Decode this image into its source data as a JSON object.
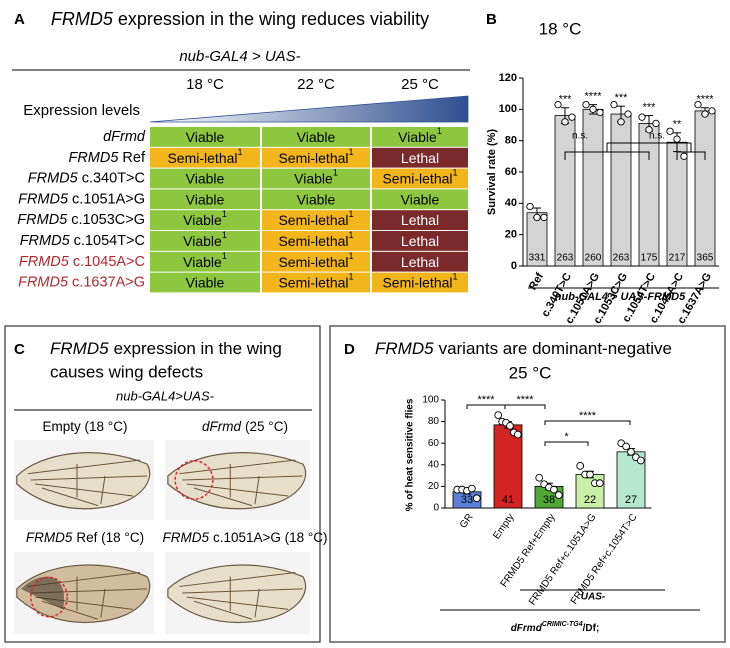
{
  "panel_a": {
    "label": "A",
    "title_gene": "FRMD5",
    "title_rest": "expression in the wing reduces viability",
    "genotype": "nub-GAL4 > UAS-",
    "temperatures": [
      "18 °C",
      "22 °C",
      "25 °C"
    ],
    "gradient_label": "Expression levels",
    "rows": [
      {
        "gene": "dFrmd",
        "color": "#000000",
        "cells": [
          {
            "text": "Viable",
            "color": "#8dc63f"
          },
          {
            "text": "Viable",
            "color": "#8dc63f"
          },
          {
            "text": "Viable",
            "note": "1",
            "color": "#8dc63f"
          }
        ]
      },
      {
        "gene": "FRMD5",
        "variant": "Ref",
        "color": "#000000",
        "cells": [
          {
            "text": "Semi-lethal",
            "note": "1",
            "color": "#f2b61c"
          },
          {
            "text": "Semi-lethal",
            "note": "1",
            "color": "#f2b61c"
          },
          {
            "text": "Lethal",
            "color": "#7a2a2a"
          }
        ]
      },
      {
        "gene": "FRMD5",
        "variant": "c.340T>C",
        "color": "#000000",
        "cells": [
          {
            "text": "Viable",
            "color": "#8dc63f"
          },
          {
            "text": "Viable",
            "note": "1",
            "color": "#8dc63f"
          },
          {
            "text": "Semi-lethal",
            "note": "1",
            "color": "#f2b61c"
          }
        ]
      },
      {
        "gene": "FRMD5",
        "variant": "c.1051A>G",
        "color": "#000000",
        "cells": [
          {
            "text": "Viable",
            "color": "#8dc63f"
          },
          {
            "text": "Viable",
            "color": "#8dc63f"
          },
          {
            "text": "Viable",
            "color": "#8dc63f"
          }
        ]
      },
      {
        "gene": "FRMD5",
        "variant": "c.1053C>G",
        "color": "#000000",
        "cells": [
          {
            "text": "Viable",
            "note": "1",
            "color": "#8dc63f"
          },
          {
            "text": "Semi-lethal",
            "note": "1",
            "color": "#f2b61c"
          },
          {
            "text": "Lethal",
            "color": "#7a2a2a"
          }
        ]
      },
      {
        "gene": "FRMD5",
        "variant": "c.1054T>C",
        "color": "#000000",
        "cells": [
          {
            "text": "Viable",
            "note": "1",
            "color": "#8dc63f"
          },
          {
            "text": "Semi-lethal",
            "note": "1",
            "color": "#f2b61c"
          },
          {
            "text": "Lethal",
            "color": "#7a2a2a"
          }
        ]
      },
      {
        "gene": "FRMD5",
        "variant": "c.1045A>C",
        "color": "#b3282d",
        "cells": [
          {
            "text": "Viable",
            "note": "1",
            "color": "#8dc63f"
          },
          {
            "text": "Semi-lethal",
            "note": "1",
            "color": "#f2b61c"
          },
          {
            "text": "Lethal",
            "color": "#7a2a2a"
          }
        ]
      },
      {
        "gene": "FRMD5",
        "variant": "c.1637A>G",
        "color": "#b3282d",
        "cells": [
          {
            "text": "Viable",
            "color": "#8dc63f"
          },
          {
            "text": "Semi-lethal",
            "note": "1",
            "color": "#f2b61c"
          },
          {
            "text": "Semi-lethal",
            "note": "1",
            "color": "#f2b61c"
          }
        ]
      }
    ]
  },
  "panel_c": {
    "label": "C",
    "title_gene": "FRMD5",
    "title_line1": "expression in the wing",
    "title_line2": "causes wing defects",
    "genotype": "nub-GAL4>UAS-",
    "images": [
      {
        "caption_rest": "Empty (18 °C)"
      },
      {
        "caption_italic": "dFrmd",
        "caption_rest": "(25 °C)"
      },
      {
        "caption_italic": "FRMD5",
        "caption_rest": "Ref (18 °C)"
      },
      {
        "caption_italic": "FRMD5",
        "caption_rest": "c.1051A>G (18 °C)"
      }
    ]
  },
  "chart_data": [
    {
      "type": "bar",
      "panel": "B",
      "title": "18 °C",
      "ylabel": "Survival rate (%)",
      "xlabel": "nub-GAL4 > UAS-FRMD5",
      "categories": [
        "Ref",
        "c.340T>C",
        "c.1051A>G",
        "c.1053C>G",
        "c.1054T>C",
        "c.1045A>C",
        "c.1637A>G"
      ],
      "values": [
        34,
        96,
        100,
        97,
        91,
        79,
        99
      ],
      "errors": [
        3,
        5,
        3,
        5,
        5,
        6,
        2
      ],
      "points": [
        [
          38,
          31,
          31
        ],
        [
          103,
          92,
          95
        ],
        [
          103,
          100,
          98
        ],
        [
          103,
          92,
          97
        ],
        [
          95,
          87,
          91
        ],
        [
          86,
          81,
          70
        ],
        [
          103,
          97,
          99
        ]
      ],
      "sample_sizes": [
        331,
        263,
        260,
        263,
        175,
        217,
        365
      ],
      "significance": [
        "***",
        "****",
        "***",
        "***",
        "**",
        "****"
      ],
      "comparisons": [
        "n.s.",
        "n.s."
      ],
      "color": "#d4d4d4",
      "ylim": [
        0,
        120
      ],
      "yticks": [
        0,
        20,
        40,
        60,
        80,
        100,
        120
      ]
    },
    {
      "type": "bar",
      "panel": "D",
      "title_gene": "FRMD5",
      "title": "variants are dominant-negative",
      "subtitle": "25 °C",
      "ylabel": "% of heat sensitive flies",
      "categories": [
        "GR",
        "Empty",
        "FRMD5 Ref+Empty",
        "FRMD5 Ref+c.1051A>G",
        "FRMD5 Ref+c.1054T>C"
      ],
      "colors": [
        "#5b7fd8",
        "#d42323",
        "#4fa834",
        "#c9f0a6",
        "#b6e8cf"
      ],
      "values": [
        15,
        77,
        20,
        31,
        52
      ],
      "errors": [
        2,
        3,
        3,
        3,
        3
      ],
      "points": [
        [
          17,
          17,
          16,
          18,
          9
        ],
        [
          86,
          80,
          79,
          76,
          70,
          68
        ],
        [
          28,
          22,
          19,
          17,
          12
        ],
        [
          39,
          31,
          31,
          23,
          23
        ],
        [
          60,
          57,
          52,
          47,
          44
        ]
      ],
      "sample_sizes": [
        33,
        41,
        38,
        22,
        27
      ],
      "comparisons": [
        "****",
        "****",
        "****",
        "*"
      ],
      "footer_upper": "UAS-",
      "footer_gene": "dFrmd",
      "footer_sup": "CRIMIC-TG4",
      "footer_rest": "/Df;",
      "ylim": [
        0,
        100
      ],
      "yticks": [
        0,
        20,
        40,
        60,
        80,
        100
      ]
    }
  ]
}
